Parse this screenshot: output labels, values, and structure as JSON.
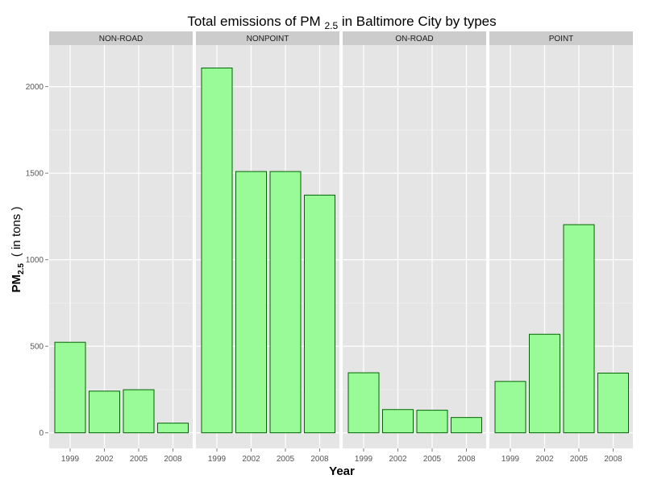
{
  "chart_data": {
    "type": "bar",
    "title": {
      "main": "Total emissions of PM",
      "sub": "2.5",
      "rest": " in Baltimore City by types"
    },
    "xlabel": "Year",
    "ylabel": {
      "main": "PM",
      "sub": "2.5",
      "unit": "( in tons )"
    },
    "categories": [
      "1999",
      "2002",
      "2005",
      "2008"
    ],
    "ylim": [
      -90,
      2240
    ],
    "yticks": [
      0,
      500,
      1000,
      1500,
      2000
    ],
    "grid": true,
    "legend": "none",
    "facets": [
      {
        "name": "NON-ROAD",
        "values": [
          522.9,
          240.8,
          248.9,
          55.8
        ]
      },
      {
        "name": "NONPOINT",
        "values": [
          2107.6,
          1509.5,
          1509.5,
          1373.2
        ]
      },
      {
        "name": "ON-ROAD",
        "values": [
          346.8,
          134.3,
          130.4,
          88.3
        ]
      },
      {
        "name": "POINT",
        "values": [
          296.8,
          569.3,
          1202.5,
          344.98
        ]
      }
    ]
  },
  "colors": {
    "bar_fill": "#98fb98",
    "bar_stroke": "#006400",
    "panel_bg": "#e5e5e5",
    "strip_bg": "#cccccc",
    "grid": "#ffffff"
  }
}
